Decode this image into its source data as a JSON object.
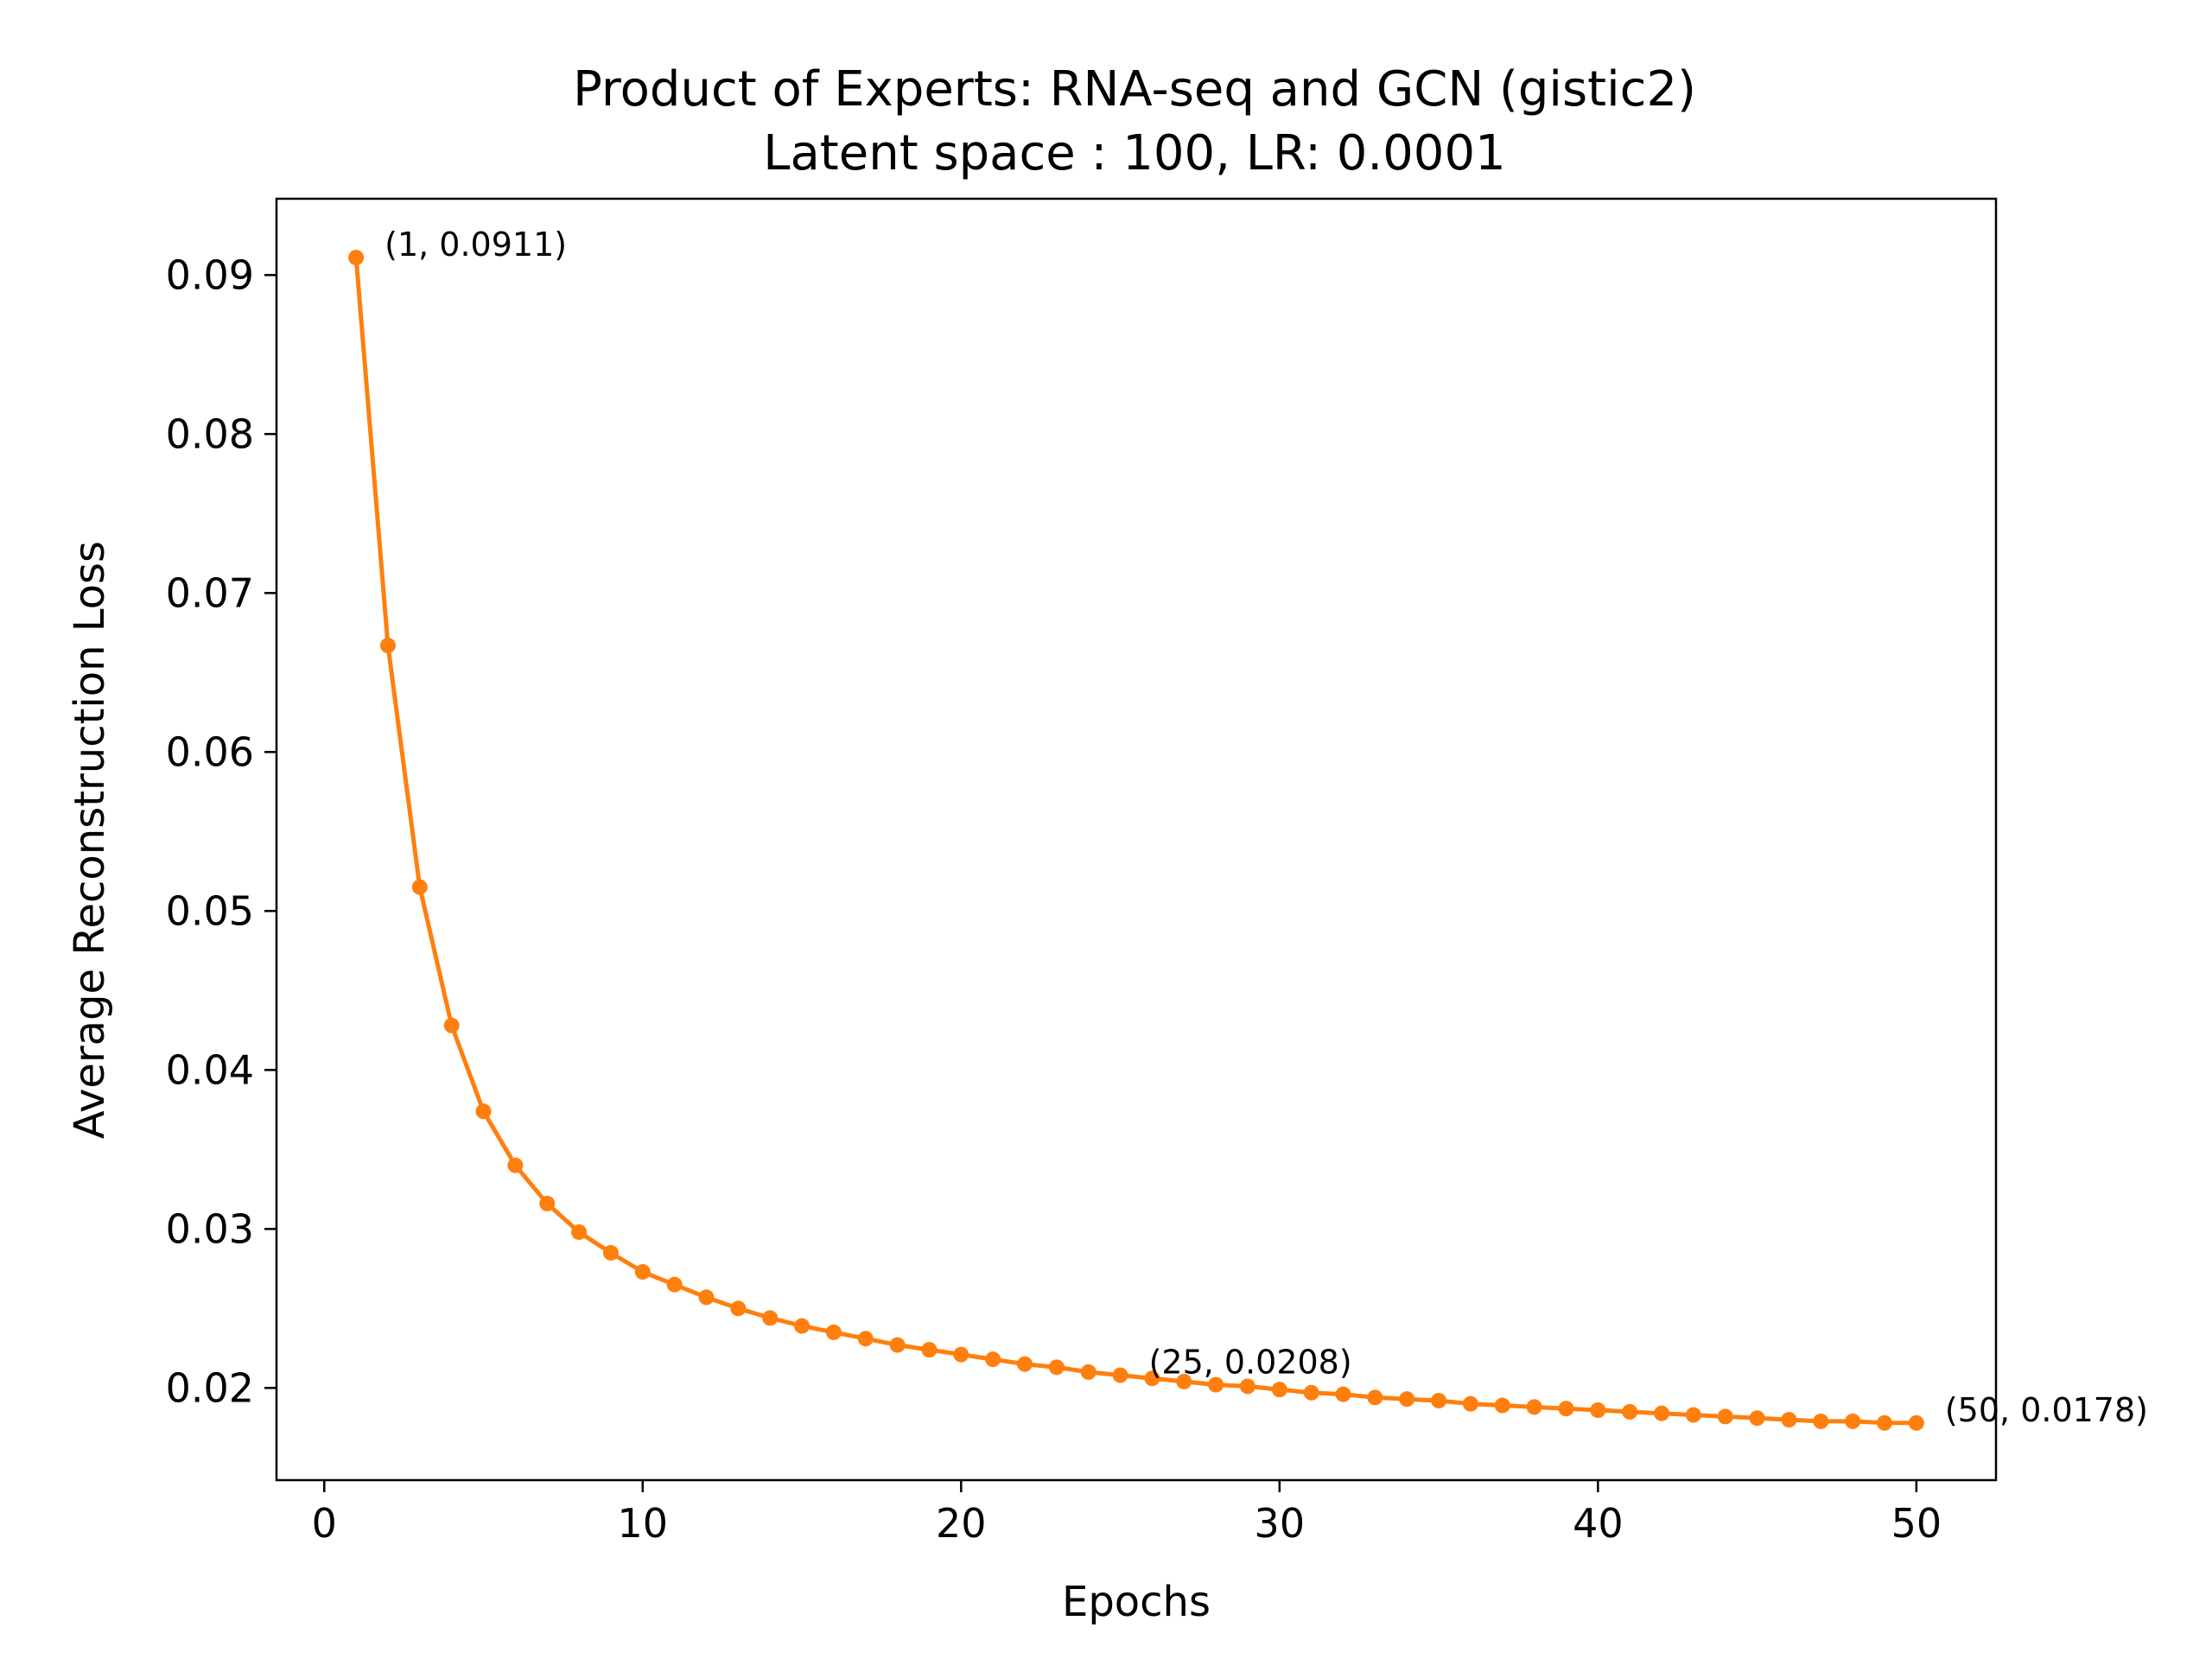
{
  "chart_data": {
    "type": "line",
    "title": "Product of Experts: RNA-seq and GCN (gistic2)",
    "subtitle": "Latent space : 100, LR: 0.0001",
    "xlabel": "Epochs",
    "ylabel": "Average Reconstruction Loss",
    "xlim": [
      -1.5,
      52.5
    ],
    "ylim": [
      0.0142,
      0.0948
    ],
    "xticks": [
      0,
      10,
      20,
      30,
      40,
      50
    ],
    "xtick_labels": [
      "0",
      "10",
      "20",
      "30",
      "40",
      "50"
    ],
    "yticks": [
      0.02,
      0.03,
      0.04,
      0.05,
      0.06,
      0.07,
      0.08,
      0.09
    ],
    "ytick_labels": [
      "0.02",
      "0.03",
      "0.04",
      "0.05",
      "0.06",
      "0.07",
      "0.08",
      "0.09"
    ],
    "grid": false,
    "color": "#ff7f0e",
    "series": [
      {
        "x": [
          1,
          2,
          3,
          4,
          5,
          6,
          7,
          8,
          9,
          10,
          11,
          12,
          13,
          14,
          15,
          16,
          17,
          18,
          19,
          20,
          21,
          22,
          23,
          24,
          25,
          26,
          27,
          28,
          29,
          30,
          31,
          32,
          33,
          34,
          35,
          36,
          37,
          38,
          39,
          40,
          41,
          42,
          43,
          44,
          45,
          46,
          47,
          48,
          49,
          50
        ],
        "values": [
          0.0911,
          0.0667,
          0.0515,
          0.0428,
          0.0374,
          0.034,
          0.0316,
          0.0298,
          0.0285,
          0.0273,
          0.0265,
          0.0257,
          0.025,
          0.0244,
          0.0239,
          0.0235,
          0.0231,
          0.0227,
          0.0224,
          0.0221,
          0.0218,
          0.0215,
          0.0213,
          0.021,
          0.0208,
          0.0206,
          0.0204,
          0.0202,
          0.0201,
          0.0199,
          0.0197,
          0.0196,
          0.0194,
          0.0193,
          0.0192,
          0.019,
          0.0189,
          0.0188,
          0.0187,
          0.0186,
          0.0185,
          0.0184,
          0.0183,
          0.0182,
          0.0181,
          0.018,
          0.0179,
          0.0179,
          0.0178,
          0.0178
        ]
      }
    ],
    "annotations": [
      {
        "x": 1,
        "y": 0.0911,
        "text": "(1, 0.0911)"
      },
      {
        "x": 25,
        "y": 0.0208,
        "text": "(25, 0.0208)"
      },
      {
        "x": 50,
        "y": 0.0178,
        "text": "(50, 0.0178)"
      }
    ]
  }
}
